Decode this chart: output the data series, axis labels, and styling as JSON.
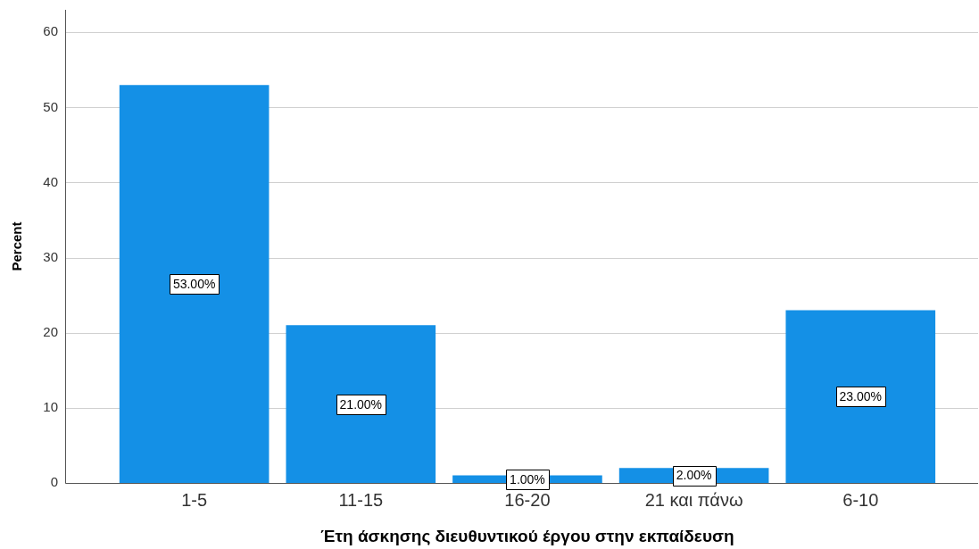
{
  "chart_data": {
    "type": "bar",
    "xlabel": "Έτη άσκησης διευθυντικού έργου στην εκπαίδευση",
    "ylabel": "Percent",
    "categories": [
      "1-5",
      "11-15",
      "16-20",
      "21 και πάνω",
      "6-10"
    ],
    "values": [
      53,
      21,
      1,
      2,
      23
    ],
    "color": "#1490e6",
    "value_labels": [
      "53.00%",
      "21.00%",
      "1.00%",
      "2.00%",
      "23.00%"
    ],
    "ylim": [
      0,
      63
    ],
    "yticks": [
      0,
      10,
      20,
      30,
      40,
      50,
      60
    ],
    "grid": "y"
  }
}
